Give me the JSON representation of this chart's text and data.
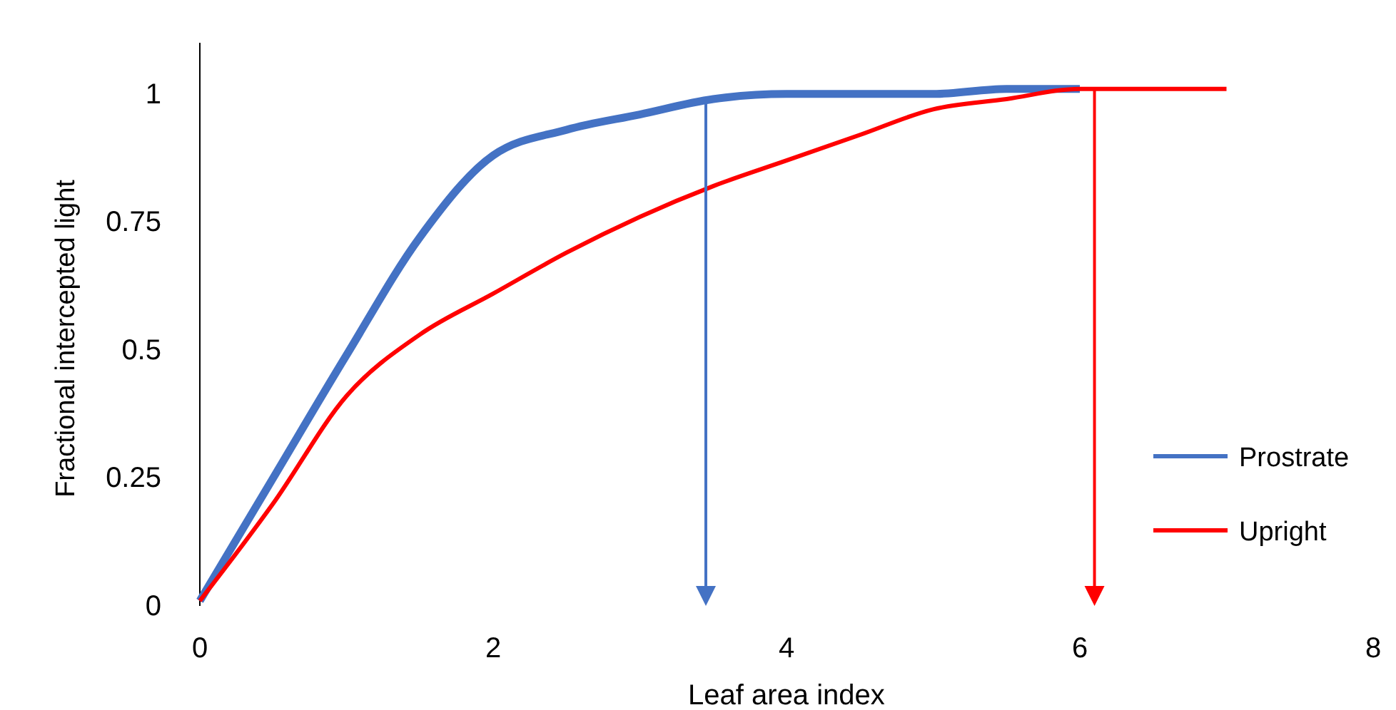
{
  "chart_data": {
    "type": "line",
    "xlabel": "Leaf area index",
    "ylabel": "Fractional intercepted light",
    "xlim": [
      0,
      8
    ],
    "xticks": [
      0,
      2,
      4,
      6,
      8
    ],
    "ylim": [
      0,
      1.1
    ],
    "yticks": [
      0,
      0.25,
      0.5,
      0.75,
      1
    ],
    "grid": false,
    "legend": "right",
    "marker": "none",
    "line_style": "solid",
    "series": [
      {
        "name": "Prostrate",
        "color": "#4472c4",
        "x": [
          0,
          0.5,
          1,
          1.5,
          2,
          2.5,
          3,
          3.5,
          4,
          4.5,
          5,
          5.5,
          6
        ],
        "values": [
          0.01,
          0.25,
          0.49,
          0.72,
          0.88,
          0.93,
          0.96,
          0.99,
          1.0,
          1.0,
          1.0,
          1.01,
          1.01
        ]
      },
      {
        "name": "Upright",
        "color": "#ff0000",
        "x": [
          0,
          0.5,
          1,
          1.5,
          2,
          2.5,
          3,
          3.5,
          4,
          4.5,
          5,
          5.5,
          6,
          6.5,
          7
        ],
        "values": [
          0.01,
          0.2,
          0.41,
          0.53,
          0.61,
          0.69,
          0.76,
          0.82,
          0.87,
          0.92,
          0.97,
          0.99,
          1.01,
          1.01,
          1.01
        ]
      }
    ],
    "ref_lines": [
      {
        "axis": "x",
        "value": 3.45,
        "color": "#4472c4"
      },
      {
        "axis": "x",
        "value": 6.1,
        "color": "#ff0000"
      }
    ]
  }
}
